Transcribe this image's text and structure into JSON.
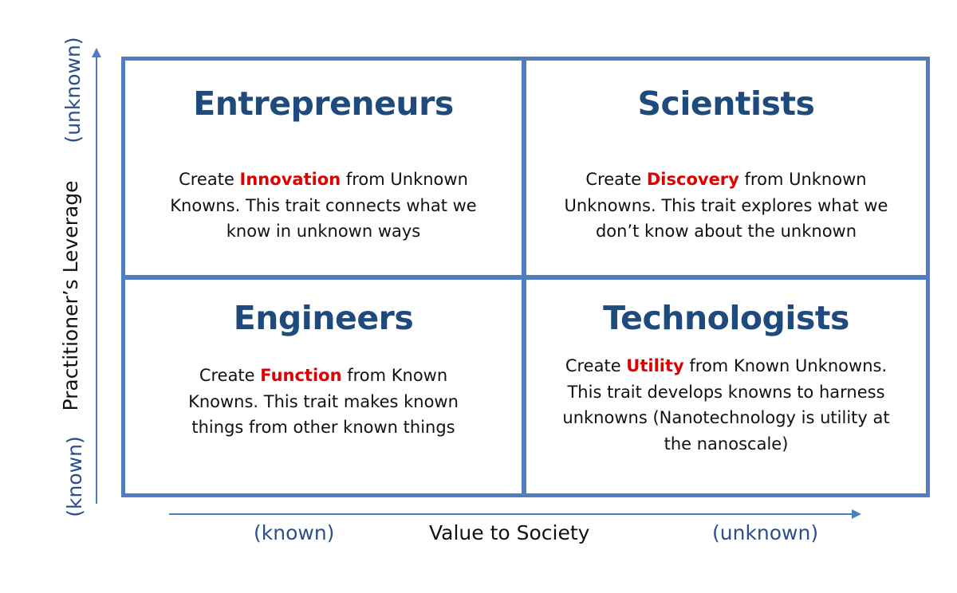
{
  "colors": {
    "grid_border": "#4f7ec0",
    "title": "#1f4a7e",
    "highlight": "#e00000",
    "axis_end_label": "#2b4f8c",
    "text": "#111111"
  },
  "quadrants": {
    "top_left": {
      "title": "Entrepreneurs",
      "pre": "Create ",
      "highlight": "Innovation",
      "post": " from Unknown Knowns. This trait connects what we know in unknown ways"
    },
    "top_right": {
      "title": "Scientists",
      "pre": "Create ",
      "highlight": "Discovery",
      "post": " from Unknown Unknowns. This trait explores what we don’t know about the unknown"
    },
    "bottom_left": {
      "title": "Engineers",
      "pre": "Create ",
      "highlight": "Function",
      "post": " from Known Knowns. This trait makes known things from other known things"
    },
    "bottom_right": {
      "title": "Technologists",
      "pre": "Create ",
      "highlight": "Utility",
      "post": " from Known Unknowns. This trait develops knowns to harness unknowns (Nanotechnology is utility at the nanoscale)"
    }
  },
  "x_axis": {
    "label": "Value to Society",
    "low": "(known)",
    "high": "(unknown)"
  },
  "y_axis": {
    "label": "Practitioner’s Leverage",
    "low": "(known)",
    "high": "(unknown)"
  }
}
